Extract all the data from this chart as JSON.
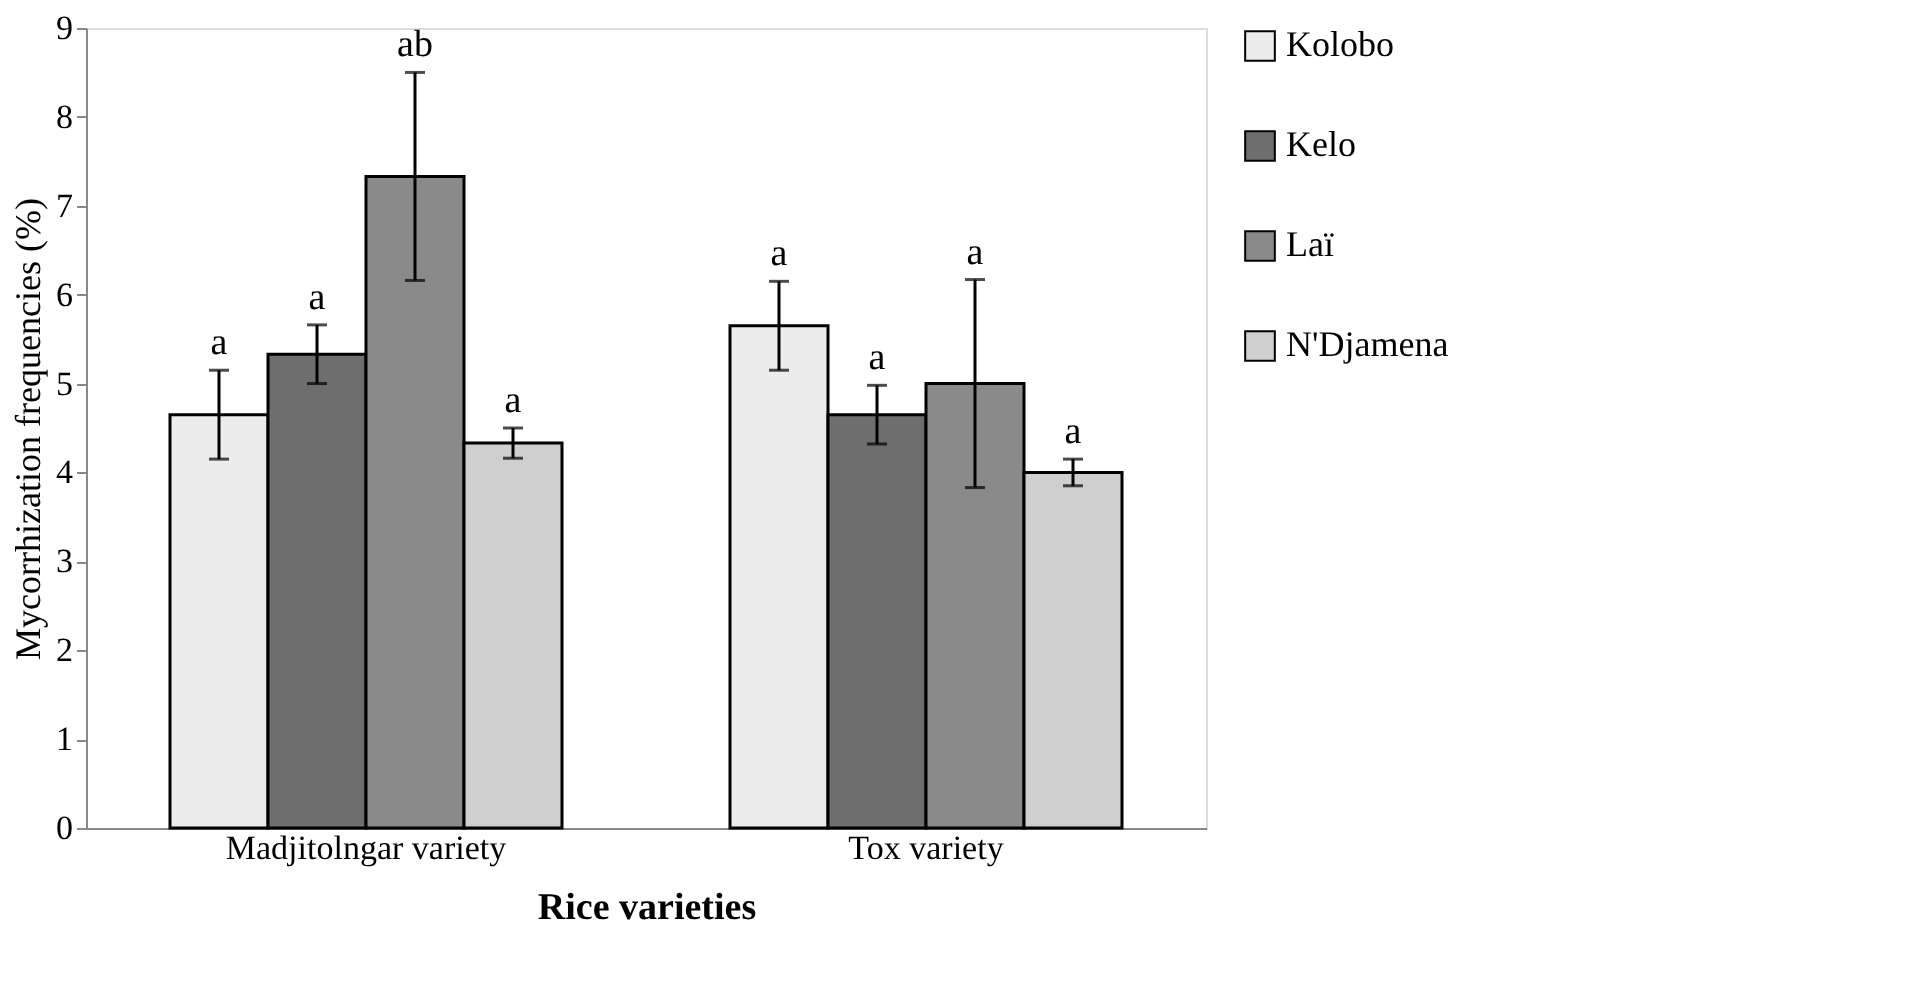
{
  "chart_data": {
    "type": "bar",
    "xlabel": "Rice varieties",
    "ylabel": "Mycorrhization frequencies (%)",
    "categories": [
      "Madjitolngar variety",
      "Tox variety"
    ],
    "series": [
      {
        "name": "Kolobo",
        "color": "#ececec",
        "values": [
          4.65,
          5.65
        ],
        "errors": [
          0.5,
          0.5
        ],
        "value_labels": [
          "a",
          "a"
        ]
      },
      {
        "name": "Kelo",
        "color": "#6e6e6e",
        "values": [
          5.33,
          4.65
        ],
        "errors": [
          0.33,
          0.33
        ],
        "value_labels": [
          "a",
          "a"
        ]
      },
      {
        "name": "Laï",
        "color": "#8a8a8a",
        "values": [
          7.33,
          5.0
        ],
        "errors": [
          1.17,
          1.17
        ],
        "value_labels": [
          "ab",
          "a"
        ]
      },
      {
        "name": "N'Djamena",
        "color": "#cfcfcf",
        "values": [
          4.33,
          4.0
        ],
        "errors": [
          0.17,
          0.15
        ],
        "value_labels": [
          "a",
          "a"
        ]
      }
    ],
    "ylim": [
      0,
      9
    ],
    "yticks": [
      0,
      1,
      2,
      3,
      4,
      5,
      6,
      7,
      8,
      9
    ],
    "grid": false,
    "legend": "right"
  }
}
